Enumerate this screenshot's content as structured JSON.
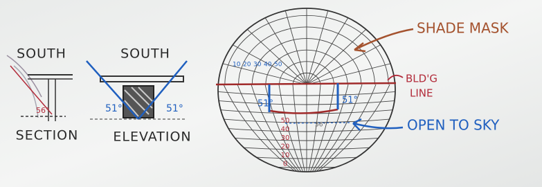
{
  "left": {
    "section": {
      "heading": "SOUTH",
      "label": "SECTION",
      "angle": "56°"
    },
    "elevation": {
      "heading": "SOUTH",
      "label": "ELEVATION",
      "angles": [
        "51°",
        "51°"
      ]
    }
  },
  "mask": {
    "scale_top": [
      "10",
      "20",
      "30",
      "40",
      "50"
    ],
    "angles": [
      "51°",
      "51°"
    ],
    "scale_vertical": [
      "50",
      "40",
      "30",
      "20",
      "10",
      "0"
    ],
    "angle_low": "56°"
  },
  "annotations": {
    "shade_mask": "SHADE MASK",
    "bldg_line": [
      "BLD'G",
      "LINE"
    ],
    "open_to_sky": "OPEN TO SKY"
  }
}
